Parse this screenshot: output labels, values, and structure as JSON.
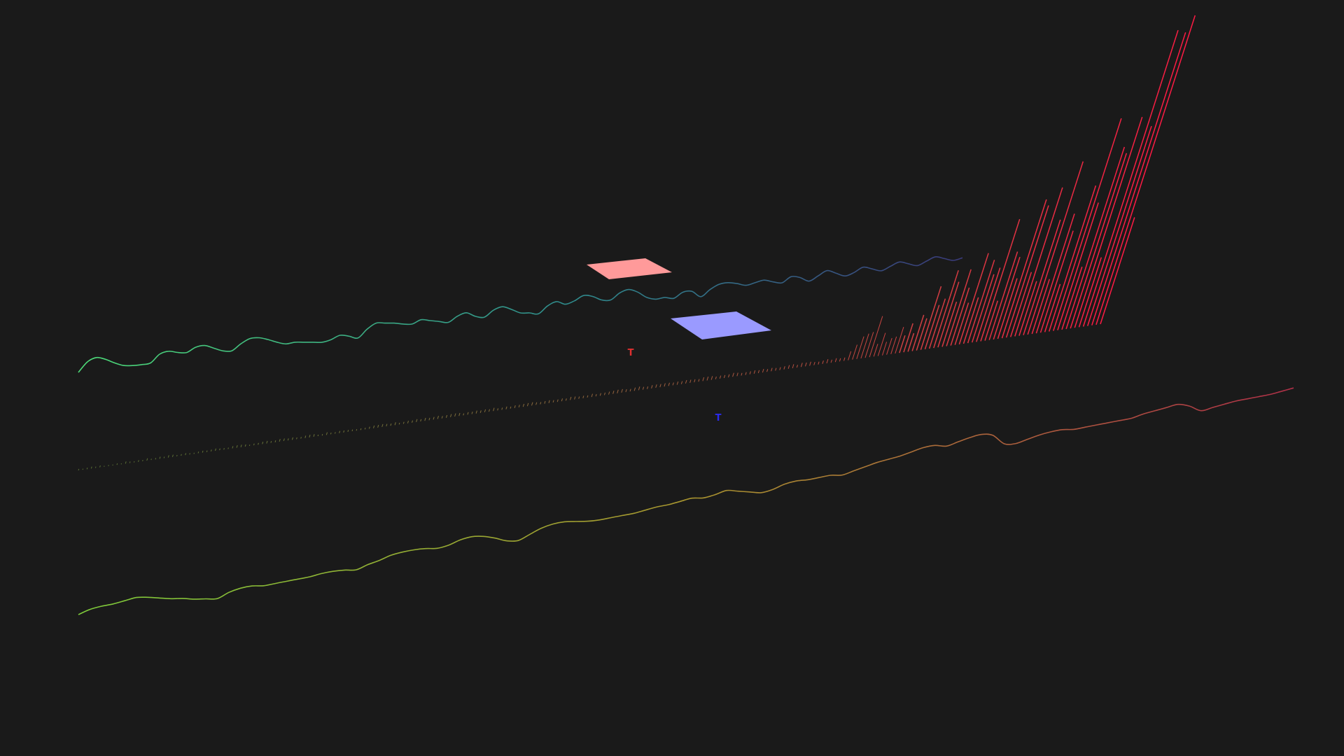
{
  "colors": {
    "background": "#1a1a1a",
    "back_series_start": "#4ddb78",
    "back_series_mid": "#2f8c8c",
    "back_series_end": "#3a3a7a",
    "front_series_start": "#7ecb3a",
    "front_series_mid": "#a8952f",
    "front_series_end": "#b03048",
    "bars_start": "#8ab04a",
    "bars_end": "#ff1a44",
    "plane_red": "#ff9a9a",
    "plane_blue": "#9a9aff",
    "marker_red": "#e03030",
    "marker_blue": "#2a2aee"
  },
  "markers": [
    {
      "id": "red",
      "label": "T"
    },
    {
      "id": "blue",
      "label": "T"
    }
  ],
  "chart_data": {
    "type": "3d-line-and-bar",
    "x": {
      "start": 0,
      "end": 1,
      "unit": "normalized"
    },
    "series": [
      {
        "id": "back-line",
        "type": "line",
        "values": [
          0.0,
          0.55,
          0.75,
          0.6,
          0.35,
          0.15,
          0.1,
          0.1,
          0.15,
          0.6,
          0.72,
          0.6,
          0.55,
          0.8,
          0.85,
          0.65,
          0.45,
          0.4,
          0.75,
          1.0,
          1.0,
          0.85,
          0.65,
          0.5,
          0.55,
          0.5,
          0.45,
          0.4,
          0.5,
          0.7,
          0.6,
          0.45,
          0.9,
          1.2,
          1.15,
          1.1,
          1.0,
          0.95,
          1.15,
          1.05,
          0.95,
          0.85,
          1.15,
          1.3,
          1.05,
          0.95,
          1.3,
          1.45,
          1.25,
          1.0,
          0.95,
          0.85,
          1.25,
          1.45,
          1.25,
          1.4,
          1.65,
          1.55,
          1.3,
          1.25,
          1.6,
          1.75,
          1.55,
          1.2,
          1.05,
          1.1,
          1.0,
          1.3,
          1.3,
          0.95,
          1.3,
          1.55,
          1.6,
          1.5,
          1.35,
          1.45,
          1.55,
          1.4,
          1.3,
          1.6,
          1.5,
          1.25,
          1.5,
          1.75,
          1.55,
          1.35,
          1.5,
          1.75,
          1.6,
          1.45,
          1.65,
          1.85,
          1.7,
          1.55,
          1.75,
          1.95,
          1.8,
          1.65,
          1.75
        ]
      },
      {
        "id": "front-line",
        "type": "line",
        "values": [
          0.0,
          0.2,
          0.3,
          0.35,
          0.45,
          0.55,
          0.5,
          0.4,
          0.3,
          0.25,
          0.15,
          0.1,
          0.05,
          0.3,
          0.45,
          0.5,
          0.45,
          0.5,
          0.55,
          0.6,
          0.65,
          0.75,
          0.8,
          0.8,
          0.75,
          0.95,
          1.1,
          1.3,
          1.4,
          1.45,
          1.45,
          1.4,
          1.5,
          1.7,
          1.8,
          1.75,
          1.6,
          1.4,
          1.35,
          1.6,
          1.85,
          2.0,
          2.05,
          2.0,
          1.95,
          1.95,
          2.0,
          2.05,
          2.1,
          2.2,
          2.3,
          2.35,
          2.45,
          2.55,
          2.5,
          2.6,
          2.75,
          2.65,
          2.55,
          2.45,
          2.55,
          2.75,
          2.85,
          2.85,
          2.9,
          2.95,
          2.9,
          3.05,
          3.2,
          3.35,
          3.45,
          3.55,
          3.7,
          3.85,
          3.9,
          3.8,
          3.95,
          4.1,
          4.2,
          4.1,
          3.6,
          3.55,
          3.7,
          3.85,
          3.95,
          4.0,
          3.95,
          4.0,
          4.05,
          4.1,
          4.15,
          4.2,
          4.35,
          4.45,
          4.55,
          4.65,
          4.5,
          4.2,
          4.3,
          4.4,
          4.5,
          4.55,
          4.6,
          4.65,
          4.75,
          4.85
        ]
      },
      {
        "id": "bars",
        "type": "bar",
        "count": 240,
        "growth": "exponential",
        "min_value": 0.0,
        "max_value": 1.0
      }
    ]
  }
}
